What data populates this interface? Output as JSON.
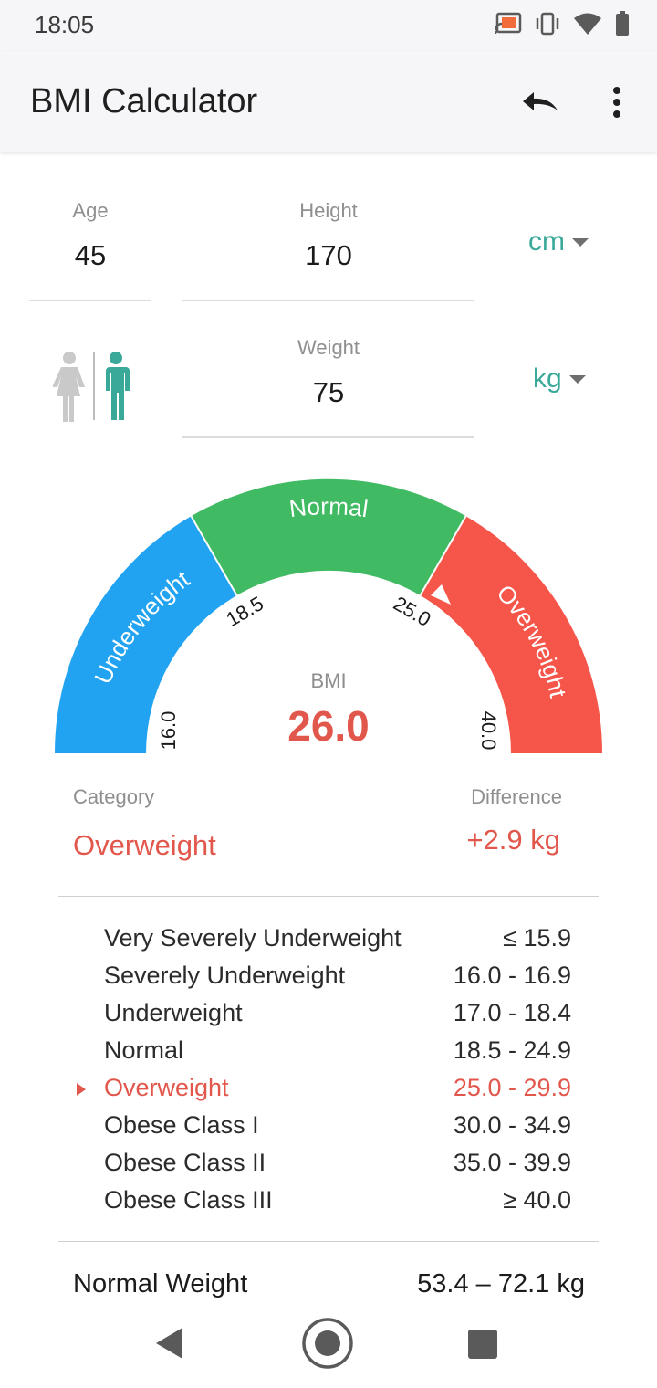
{
  "status_bar": {
    "time": "18:05",
    "icons": [
      "cast-icon",
      "vibrate-icon",
      "wifi-icon",
      "battery-icon"
    ]
  },
  "app_bar": {
    "title": "BMI Calculator",
    "actions": [
      "undo-icon",
      "more-vert-icon"
    ]
  },
  "inputs": {
    "age": {
      "label": "Age",
      "value": "45"
    },
    "height": {
      "label": "Height",
      "value": "170",
      "unit": "cm"
    },
    "weight": {
      "label": "Weight",
      "value": "75",
      "unit": "kg"
    },
    "gender": {
      "options": [
        "female",
        "male"
      ],
      "selected": "male"
    }
  },
  "gauge": {
    "segments": [
      {
        "label": "Underweight",
        "color": "#21a3f1"
      },
      {
        "label": "Normal",
        "color": "#41bb63"
      },
      {
        "label": "Overweight",
        "color": "#f6554a"
      }
    ],
    "ticks": [
      "16.0",
      "18.5",
      "25.0",
      "40.0"
    ],
    "bmi_label": "BMI",
    "bmi_value": "26.0",
    "needle_value": 26.0
  },
  "result": {
    "category_label": "Category",
    "category_value": "Overweight",
    "difference_label": "Difference",
    "difference_value": "+2.9 kg"
  },
  "categories": [
    {
      "name": "Very Severely Underweight",
      "range": "≤ 15.9",
      "active": false
    },
    {
      "name": "Severely Underweight",
      "range": "16.0 - 16.9",
      "active": false
    },
    {
      "name": "Underweight",
      "range": "17.0 - 18.4",
      "active": false
    },
    {
      "name": "Normal",
      "range": "18.5 - 24.9",
      "active": false
    },
    {
      "name": "Overweight",
      "range": "25.0 - 29.9",
      "active": true
    },
    {
      "name": "Obese Class I",
      "range": "30.0 - 34.9",
      "active": false
    },
    {
      "name": "Obese Class II",
      "range": "35.0 - 39.9",
      "active": false
    },
    {
      "name": "Obese Class III",
      "range": "≥ 40.0",
      "active": false
    }
  ],
  "normal_weight": {
    "label": "Normal Weight",
    "value": "53.4 – 72.1 kg"
  },
  "colors": {
    "accent": "#3aa99a",
    "alert": "#e2574c"
  }
}
